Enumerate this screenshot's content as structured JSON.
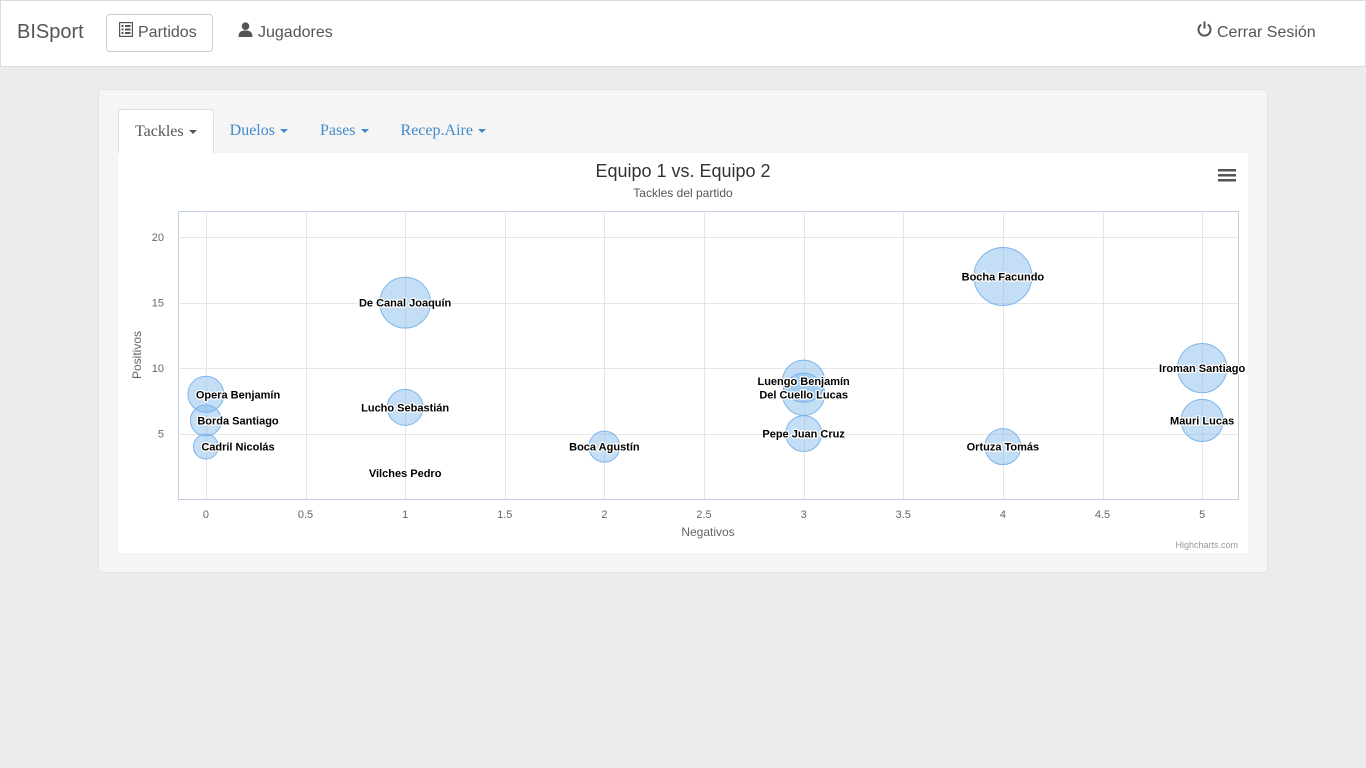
{
  "navbar": {
    "brand": "BISport",
    "partidos_label": "Partidos",
    "jugadores_label": "Jugadores",
    "logout_label": "Cerrar Sesión"
  },
  "tabs": [
    {
      "label": "Tackles"
    },
    {
      "label": "Duelos"
    },
    {
      "label": "Pases"
    },
    {
      "label": "Recep.Aire"
    }
  ],
  "colors": {
    "bubble_fill": "#7cb5ec",
    "bubble_stroke": "#7cb5ec",
    "link": "#428bca"
  },
  "chart_data": {
    "type": "bubble",
    "title": "Equipo 1 vs. Equipo 2",
    "subtitle": "Tackles del partido",
    "xlabel": "Negativos",
    "ylabel": "Positivos",
    "xlim": [
      -0.14,
      5.18
    ],
    "ylim": [
      0,
      22
    ],
    "xticks": [
      "0",
      "0.5",
      "1",
      "1.5",
      "2",
      "2.5",
      "3",
      "3.5",
      "4",
      "4.5",
      "5"
    ],
    "xtick_values": [
      0,
      0.5,
      1,
      1.5,
      2,
      2.5,
      3,
      3.5,
      4,
      4.5,
      5
    ],
    "yticks": [
      "5",
      "10",
      "15",
      "20"
    ],
    "ytick_values": [
      5,
      10,
      15,
      20
    ],
    "grid": true,
    "credits": "Highcharts.com",
    "points": [
      {
        "name": "Bocha Facundo",
        "x": 4,
        "y": 17,
        "z": 21
      },
      {
        "name": "De Canal Joaquín",
        "x": 1,
        "y": 15,
        "z": 16
      },
      {
        "name": "Iroman Santiago",
        "x": 5,
        "y": 10,
        "z": 15
      },
      {
        "name": "Luengo Benjamín",
        "x": 3,
        "y": 9,
        "z": 11
      },
      {
        "name": "Del Cuello Lucas",
        "x": 3,
        "y": 8,
        "z": 11
      },
      {
        "name": "Mauri Lucas",
        "x": 5,
        "y": 6,
        "z": 11
      },
      {
        "name": "Opera Benjamín",
        "x": 0,
        "y": 8,
        "z": 8
      },
      {
        "name": "Lucho Sebastián",
        "x": 1,
        "y": 7,
        "z": 8
      },
      {
        "name": "Pepe Juan Cruz",
        "x": 3,
        "y": 5,
        "z": 8
      },
      {
        "name": "Ortuza Tomás",
        "x": 4,
        "y": 4,
        "z": 8
      },
      {
        "name": "Borda Santiago",
        "x": 0,
        "y": 6,
        "z": 6
      },
      {
        "name": "Boca Agustín",
        "x": 2,
        "y": 4,
        "z": 6
      },
      {
        "name": "Cadril Nicolás",
        "x": 0,
        "y": 4,
        "z": 4
      },
      {
        "name": "Vilches Pedro",
        "x": 1,
        "y": 2,
        "z": 1
      }
    ]
  }
}
